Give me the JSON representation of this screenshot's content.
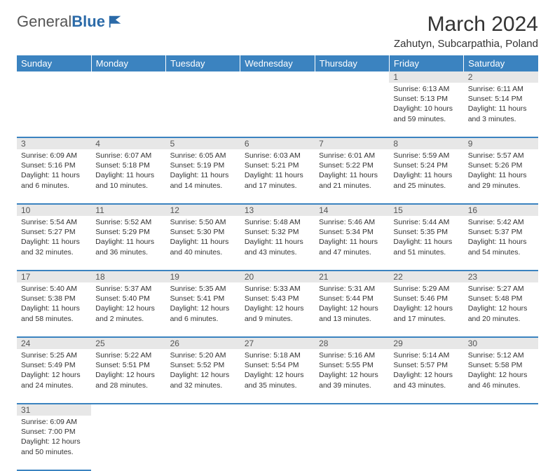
{
  "logo": {
    "word1": "General",
    "word2": "Blue"
  },
  "title": "March 2024",
  "location": "Zahutyn, Subcarpathia, Poland",
  "colors": {
    "header_bg": "#3b83c0",
    "header_text": "#ffffff",
    "daynum_bg": "#e7e7e7",
    "row_divider": "#3b83c0",
    "text": "#333333",
    "logo_blue": "#2b6aa8"
  },
  "weekdays": [
    "Sunday",
    "Monday",
    "Tuesday",
    "Wednesday",
    "Thursday",
    "Friday",
    "Saturday"
  ],
  "weeks": [
    [
      null,
      null,
      null,
      null,
      null,
      {
        "n": "1",
        "sunrise": "6:13 AM",
        "sunset": "5:13 PM",
        "daylight": "10 hours and 59 minutes."
      },
      {
        "n": "2",
        "sunrise": "6:11 AM",
        "sunset": "5:14 PM",
        "daylight": "11 hours and 3 minutes."
      }
    ],
    [
      {
        "n": "3",
        "sunrise": "6:09 AM",
        "sunset": "5:16 PM",
        "daylight": "11 hours and 6 minutes."
      },
      {
        "n": "4",
        "sunrise": "6:07 AM",
        "sunset": "5:18 PM",
        "daylight": "11 hours and 10 minutes."
      },
      {
        "n": "5",
        "sunrise": "6:05 AM",
        "sunset": "5:19 PM",
        "daylight": "11 hours and 14 minutes."
      },
      {
        "n": "6",
        "sunrise": "6:03 AM",
        "sunset": "5:21 PM",
        "daylight": "11 hours and 17 minutes."
      },
      {
        "n": "7",
        "sunrise": "6:01 AM",
        "sunset": "5:22 PM",
        "daylight": "11 hours and 21 minutes."
      },
      {
        "n": "8",
        "sunrise": "5:59 AM",
        "sunset": "5:24 PM",
        "daylight": "11 hours and 25 minutes."
      },
      {
        "n": "9",
        "sunrise": "5:57 AM",
        "sunset": "5:26 PM",
        "daylight": "11 hours and 29 minutes."
      }
    ],
    [
      {
        "n": "10",
        "sunrise": "5:54 AM",
        "sunset": "5:27 PM",
        "daylight": "11 hours and 32 minutes."
      },
      {
        "n": "11",
        "sunrise": "5:52 AM",
        "sunset": "5:29 PM",
        "daylight": "11 hours and 36 minutes."
      },
      {
        "n": "12",
        "sunrise": "5:50 AM",
        "sunset": "5:30 PM",
        "daylight": "11 hours and 40 minutes."
      },
      {
        "n": "13",
        "sunrise": "5:48 AM",
        "sunset": "5:32 PM",
        "daylight": "11 hours and 43 minutes."
      },
      {
        "n": "14",
        "sunrise": "5:46 AM",
        "sunset": "5:34 PM",
        "daylight": "11 hours and 47 minutes."
      },
      {
        "n": "15",
        "sunrise": "5:44 AM",
        "sunset": "5:35 PM",
        "daylight": "11 hours and 51 minutes."
      },
      {
        "n": "16",
        "sunrise": "5:42 AM",
        "sunset": "5:37 PM",
        "daylight": "11 hours and 54 minutes."
      }
    ],
    [
      {
        "n": "17",
        "sunrise": "5:40 AM",
        "sunset": "5:38 PM",
        "daylight": "11 hours and 58 minutes."
      },
      {
        "n": "18",
        "sunrise": "5:37 AM",
        "sunset": "5:40 PM",
        "daylight": "12 hours and 2 minutes."
      },
      {
        "n": "19",
        "sunrise": "5:35 AM",
        "sunset": "5:41 PM",
        "daylight": "12 hours and 6 minutes."
      },
      {
        "n": "20",
        "sunrise": "5:33 AM",
        "sunset": "5:43 PM",
        "daylight": "12 hours and 9 minutes."
      },
      {
        "n": "21",
        "sunrise": "5:31 AM",
        "sunset": "5:44 PM",
        "daylight": "12 hours and 13 minutes."
      },
      {
        "n": "22",
        "sunrise": "5:29 AM",
        "sunset": "5:46 PM",
        "daylight": "12 hours and 17 minutes."
      },
      {
        "n": "23",
        "sunrise": "5:27 AM",
        "sunset": "5:48 PM",
        "daylight": "12 hours and 20 minutes."
      }
    ],
    [
      {
        "n": "24",
        "sunrise": "5:25 AM",
        "sunset": "5:49 PM",
        "daylight": "12 hours and 24 minutes."
      },
      {
        "n": "25",
        "sunrise": "5:22 AM",
        "sunset": "5:51 PM",
        "daylight": "12 hours and 28 minutes."
      },
      {
        "n": "26",
        "sunrise": "5:20 AM",
        "sunset": "5:52 PM",
        "daylight": "12 hours and 32 minutes."
      },
      {
        "n": "27",
        "sunrise": "5:18 AM",
        "sunset": "5:54 PM",
        "daylight": "12 hours and 35 minutes."
      },
      {
        "n": "28",
        "sunrise": "5:16 AM",
        "sunset": "5:55 PM",
        "daylight": "12 hours and 39 minutes."
      },
      {
        "n": "29",
        "sunrise": "5:14 AM",
        "sunset": "5:57 PM",
        "daylight": "12 hours and 43 minutes."
      },
      {
        "n": "30",
        "sunrise": "5:12 AM",
        "sunset": "5:58 PM",
        "daylight": "12 hours and 46 minutes."
      }
    ],
    [
      {
        "n": "31",
        "sunrise": "6:09 AM",
        "sunset": "7:00 PM",
        "daylight": "12 hours and 50 minutes."
      },
      null,
      null,
      null,
      null,
      null,
      null
    ]
  ],
  "labels": {
    "sunrise": "Sunrise: ",
    "sunset": "Sunset: ",
    "daylight": "Daylight: "
  }
}
